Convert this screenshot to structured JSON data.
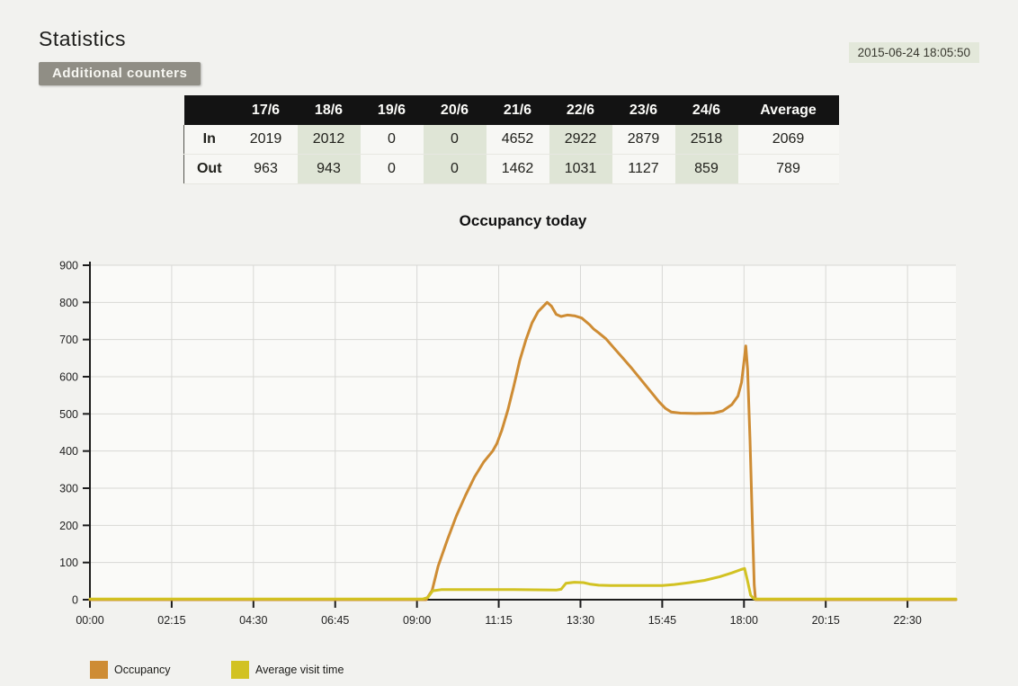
{
  "header": {
    "title": "Statistics",
    "additional_counters_label": "Additional counters",
    "timestamp": "2015-06-24 18:05:50",
    "timestamp_bg": "#e3e8da",
    "button_bg": "#908e85"
  },
  "table": {
    "columns": [
      "",
      "17/6",
      "18/6",
      "19/6",
      "20/6",
      "21/6",
      "22/6",
      "23/6",
      "24/6",
      "Average"
    ],
    "rows": [
      {
        "label": "In",
        "values": [
          2019,
          2012,
          0,
          0,
          4652,
          2922,
          2879,
          2518,
          2069
        ]
      },
      {
        "label": "Out",
        "values": [
          963,
          943,
          0,
          0,
          1462,
          1031,
          1127,
          859,
          789
        ]
      }
    ],
    "shaded_columns": [
      "18/6",
      "20/6",
      "22/6",
      "24/6"
    ],
    "header_bg": "#131313",
    "shade_color": "#dfe5d6"
  },
  "chart_data": {
    "type": "line",
    "title": "Occupancy today",
    "xlabel": "",
    "ylabel": "",
    "grid": true,
    "legend_position": "bottom-left",
    "y_axis": {
      "min": 0,
      "max": 900,
      "step": 100,
      "tick_labels": [
        "0",
        "100",
        "200",
        "300",
        "400",
        "500",
        "600",
        "700",
        "800",
        "900"
      ]
    },
    "x_axis": {
      "unit": "time",
      "max_minutes": 1430,
      "tick_minutes": [
        0,
        135,
        270,
        405,
        540,
        675,
        810,
        945,
        1080,
        1215,
        1350
      ],
      "tick_labels": [
        "00:00",
        "02:15",
        "04:30",
        "06:45",
        "09:00",
        "11:15",
        "13:30",
        "15:45",
        "18:00",
        "20:15",
        "22:30"
      ]
    },
    "series": [
      {
        "name": "Occupancy",
        "color": "#ce8c34",
        "points": [
          [
            0,
            0
          ],
          [
            555,
            0
          ],
          [
            565,
            25
          ],
          [
            575,
            90
          ],
          [
            590,
            160
          ],
          [
            605,
            225
          ],
          [
            620,
            280
          ],
          [
            635,
            330
          ],
          [
            650,
            370
          ],
          [
            665,
            400
          ],
          [
            672,
            420
          ],
          [
            680,
            455
          ],
          [
            690,
            510
          ],
          [
            700,
            575
          ],
          [
            710,
            645
          ],
          [
            720,
            700
          ],
          [
            730,
            745
          ],
          [
            740,
            775
          ],
          [
            755,
            800
          ],
          [
            762,
            790
          ],
          [
            770,
            768
          ],
          [
            778,
            762
          ],
          [
            788,
            766
          ],
          [
            800,
            764
          ],
          [
            812,
            758
          ],
          [
            825,
            740
          ],
          [
            832,
            728
          ],
          [
            840,
            718
          ],
          [
            852,
            702
          ],
          [
            865,
            678
          ],
          [
            880,
            650
          ],
          [
            895,
            622
          ],
          [
            910,
            592
          ],
          [
            925,
            562
          ],
          [
            940,
            532
          ],
          [
            950,
            515
          ],
          [
            960,
            505
          ],
          [
            975,
            502
          ],
          [
            1000,
            501
          ],
          [
            1030,
            502
          ],
          [
            1045,
            508
          ],
          [
            1060,
            525
          ],
          [
            1070,
            548
          ],
          [
            1076,
            585
          ],
          [
            1080,
            640
          ],
          [
            1083,
            683
          ],
          [
            1086,
            620
          ],
          [
            1090,
            430
          ],
          [
            1094,
            200
          ],
          [
            1097,
            40
          ],
          [
            1099,
            0
          ],
          [
            1430,
            0
          ]
        ]
      },
      {
        "name": "Average visit time",
        "color": "#d2c222",
        "points": [
          [
            0,
            2
          ],
          [
            550,
            2
          ],
          [
            558,
            6
          ],
          [
            566,
            24
          ],
          [
            580,
            27
          ],
          [
            700,
            27
          ],
          [
            770,
            26
          ],
          [
            778,
            28
          ],
          [
            786,
            44
          ],
          [
            800,
            47
          ],
          [
            815,
            46
          ],
          [
            825,
            42
          ],
          [
            840,
            39
          ],
          [
            860,
            38
          ],
          [
            945,
            38
          ],
          [
            965,
            41
          ],
          [
            990,
            46
          ],
          [
            1015,
            52
          ],
          [
            1040,
            62
          ],
          [
            1060,
            72
          ],
          [
            1075,
            81
          ],
          [
            1081,
            84
          ],
          [
            1086,
            50
          ],
          [
            1091,
            12
          ],
          [
            1096,
            3
          ],
          [
            1100,
            2
          ],
          [
            1430,
            2
          ]
        ]
      }
    ]
  }
}
